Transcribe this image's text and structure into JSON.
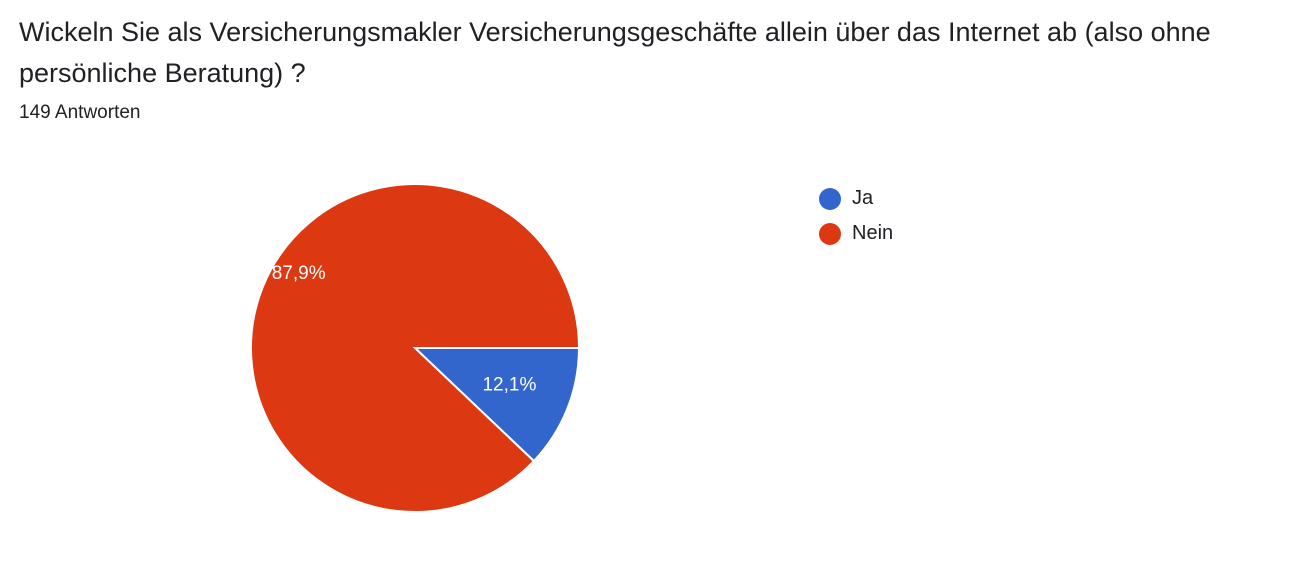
{
  "question": "Wickeln Sie als Versicherungsmakler Versicherungsgeschäfte allein über das Internet ab (also ohne persönliche Beratung) ?",
  "response_count": "149 Antworten",
  "chart_data": {
    "type": "pie",
    "categories": [
      "Ja",
      "Nein"
    ],
    "values": [
      12.1,
      87.9
    ],
    "value_labels": [
      "12,1%",
      "87,9%"
    ],
    "colors": [
      "#3366cc",
      "#dc3912"
    ],
    "legend": "right"
  }
}
